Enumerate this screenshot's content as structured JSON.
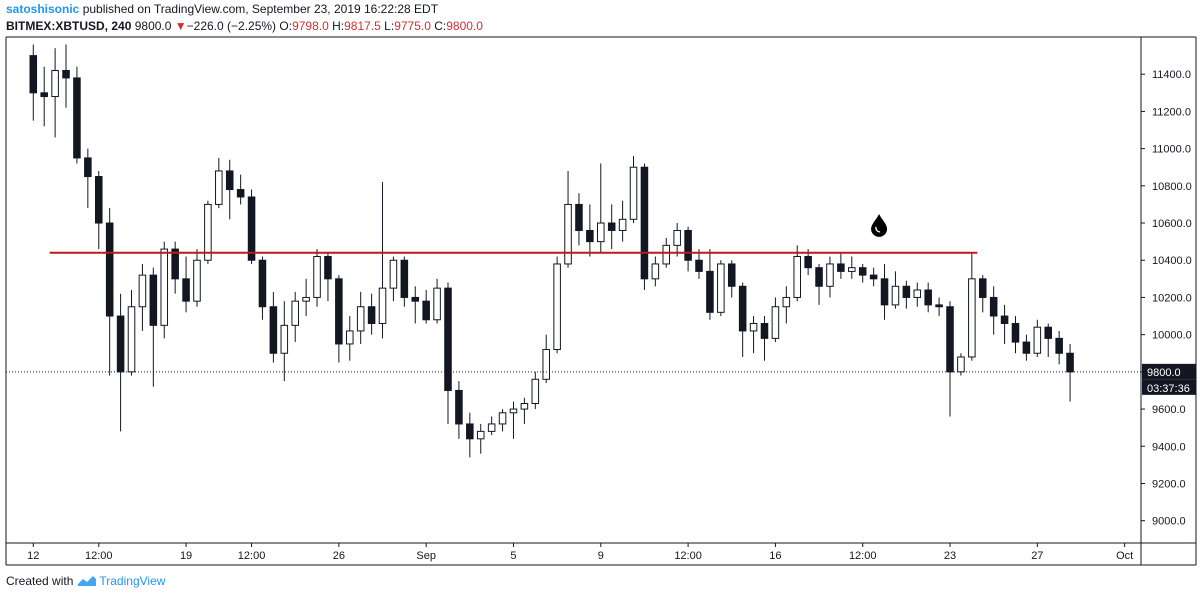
{
  "header": {
    "author": "satoshisonic",
    "published_text": "published on TradingView.com, September 23, 2019 16:22:28 EDT"
  },
  "symbol": {
    "name": "BITMEX:XBTUSD",
    "interval": "240",
    "last": "9800.0",
    "change": "−226.0 (−2.25%)",
    "open_label": "O:",
    "open": "9798.0",
    "high_label": "H:",
    "high": "9817.5",
    "low_label": "L:",
    "low": "9775.0",
    "close_label": "C:",
    "close": "9800.0"
  },
  "footer": {
    "created_with": "Created with",
    "brand": "TradingView"
  },
  "colors": {
    "candle": "#131722",
    "resistance": "#b71c1c",
    "drop_icon": "#000000",
    "price_tag_bg": "#131722"
  },
  "chart_data": {
    "type": "candlestick",
    "title": "",
    "xlabel": "",
    "ylabel": "",
    "ylim": [
      8880,
      11600
    ],
    "y_ticks": [
      "11400.0",
      "11200.0",
      "11000.0",
      "10800.0",
      "10600.0",
      "10400.0",
      "10200.0",
      "10000.0",
      "9800.0",
      "9600.0",
      "9400.0",
      "9200.0",
      "9000.0"
    ],
    "x_ticks": [
      "12",
      "12:00",
      "19",
      "12:00",
      "26",
      "Sep",
      "5",
      "9",
      "12:00",
      "16",
      "12:00",
      "23",
      "27",
      "Oct"
    ],
    "x_tick_positions": [
      0,
      6,
      14,
      20,
      28,
      36,
      44,
      52,
      60,
      68,
      76,
      84,
      92,
      100
    ],
    "x_domain": [
      -2.5,
      101.5
    ],
    "price_tag": "9800.0",
    "countdown": "03:37:36",
    "current_price": 9800,
    "resistance_level": 10440,
    "resistance_range": [
      1.5,
      86.5
    ],
    "drop_icon_at": {
      "x": 77.5,
      "y": 10590
    },
    "candles": [
      {
        "o": 11500,
        "h": 11560,
        "l": 11150,
        "c": 11300
      },
      {
        "o": 11300,
        "h": 11440,
        "l": 11120,
        "c": 11280
      },
      {
        "o": 11280,
        "h": 11540,
        "l": 11060,
        "c": 11420
      },
      {
        "o": 11420,
        "h": 11560,
        "l": 11220,
        "c": 11380
      },
      {
        "o": 11380,
        "h": 11440,
        "l": 10920,
        "c": 10950
      },
      {
        "o": 10950,
        "h": 11000,
        "l": 10680,
        "c": 10850
      },
      {
        "o": 10850,
        "h": 10880,
        "l": 10460,
        "c": 10600
      },
      {
        "o": 10600,
        "h": 10680,
        "l": 9780,
        "c": 10100
      },
      {
        "o": 10100,
        "h": 10220,
        "l": 9480,
        "c": 9800
      },
      {
        "o": 9800,
        "h": 10240,
        "l": 9780,
        "c": 10150
      },
      {
        "o": 10150,
        "h": 10380,
        "l": 10020,
        "c": 10320
      },
      {
        "o": 10320,
        "h": 10360,
        "l": 9720,
        "c": 10050
      },
      {
        "o": 10050,
        "h": 10500,
        "l": 9980,
        "c": 10460
      },
      {
        "o": 10460,
        "h": 10500,
        "l": 10220,
        "c": 10300
      },
      {
        "o": 10300,
        "h": 10420,
        "l": 10120,
        "c": 10180
      },
      {
        "o": 10180,
        "h": 10460,
        "l": 10150,
        "c": 10400
      },
      {
        "o": 10400,
        "h": 10720,
        "l": 10380,
        "c": 10700
      },
      {
        "o": 10700,
        "h": 10950,
        "l": 10680,
        "c": 10880
      },
      {
        "o": 10880,
        "h": 10940,
        "l": 10620,
        "c": 10780
      },
      {
        "o": 10780,
        "h": 10860,
        "l": 10700,
        "c": 10740
      },
      {
        "o": 10740,
        "h": 10780,
        "l": 10380,
        "c": 10400
      },
      {
        "o": 10400,
        "h": 10420,
        "l": 10080,
        "c": 10150
      },
      {
        "o": 10150,
        "h": 10230,
        "l": 9850,
        "c": 9900
      },
      {
        "o": 9900,
        "h": 10180,
        "l": 9750,
        "c": 10050
      },
      {
        "o": 10050,
        "h": 10230,
        "l": 9960,
        "c": 10180
      },
      {
        "o": 10180,
        "h": 10300,
        "l": 10100,
        "c": 10200
      },
      {
        "o": 10200,
        "h": 10460,
        "l": 10150,
        "c": 10420
      },
      {
        "o": 10420,
        "h": 10440,
        "l": 10180,
        "c": 10300
      },
      {
        "o": 10300,
        "h": 10320,
        "l": 9850,
        "c": 9950
      },
      {
        "o": 9950,
        "h": 10100,
        "l": 9860,
        "c": 10020
      },
      {
        "o": 10020,
        "h": 10230,
        "l": 9950,
        "c": 10150
      },
      {
        "o": 10150,
        "h": 10220,
        "l": 10000,
        "c": 10060
      },
      {
        "o": 10060,
        "h": 10820,
        "l": 9980,
        "c": 10250
      },
      {
        "o": 10250,
        "h": 10420,
        "l": 10180,
        "c": 10400
      },
      {
        "o": 10400,
        "h": 10420,
        "l": 10150,
        "c": 10200
      },
      {
        "o": 10200,
        "h": 10260,
        "l": 10060,
        "c": 10180
      },
      {
        "o": 10180,
        "h": 10240,
        "l": 10060,
        "c": 10080
      },
      {
        "o": 10080,
        "h": 10300,
        "l": 10060,
        "c": 10250
      },
      {
        "o": 10250,
        "h": 10280,
        "l": 9520,
        "c": 9700
      },
      {
        "o": 9700,
        "h": 9750,
        "l": 9440,
        "c": 9520
      },
      {
        "o": 9520,
        "h": 9580,
        "l": 9340,
        "c": 9440
      },
      {
        "o": 9440,
        "h": 9520,
        "l": 9360,
        "c": 9480
      },
      {
        "o": 9480,
        "h": 9560,
        "l": 9460,
        "c": 9520
      },
      {
        "o": 9520,
        "h": 9600,
        "l": 9480,
        "c": 9580
      },
      {
        "o": 9580,
        "h": 9640,
        "l": 9440,
        "c": 9600
      },
      {
        "o": 9600,
        "h": 9660,
        "l": 9520,
        "c": 9630
      },
      {
        "o": 9630,
        "h": 9800,
        "l": 9600,
        "c": 9760
      },
      {
        "o": 9760,
        "h": 10000,
        "l": 9740,
        "c": 9920
      },
      {
        "o": 9920,
        "h": 10420,
        "l": 9900,
        "c": 10380
      },
      {
        "o": 10380,
        "h": 10880,
        "l": 10360,
        "c": 10700
      },
      {
        "o": 10700,
        "h": 10760,
        "l": 10480,
        "c": 10560
      },
      {
        "o": 10560,
        "h": 10700,
        "l": 10420,
        "c": 10500
      },
      {
        "o": 10500,
        "h": 10920,
        "l": 10440,
        "c": 10600
      },
      {
        "o": 10600,
        "h": 10700,
        "l": 10460,
        "c": 10560
      },
      {
        "o": 10560,
        "h": 10720,
        "l": 10500,
        "c": 10620
      },
      {
        "o": 10620,
        "h": 10960,
        "l": 10600,
        "c": 10900
      },
      {
        "o": 10900,
        "h": 10920,
        "l": 10240,
        "c": 10300
      },
      {
        "o": 10300,
        "h": 10420,
        "l": 10260,
        "c": 10380
      },
      {
        "o": 10380,
        "h": 10520,
        "l": 10360,
        "c": 10480
      },
      {
        "o": 10480,
        "h": 10600,
        "l": 10420,
        "c": 10560
      },
      {
        "o": 10560,
        "h": 10580,
        "l": 10340,
        "c": 10400
      },
      {
        "o": 10400,
        "h": 10460,
        "l": 10300,
        "c": 10340
      },
      {
        "o": 10340,
        "h": 10460,
        "l": 10080,
        "c": 10120
      },
      {
        "o": 10120,
        "h": 10400,
        "l": 10100,
        "c": 10380
      },
      {
        "o": 10380,
        "h": 10400,
        "l": 10200,
        "c": 10260
      },
      {
        "o": 10260,
        "h": 10280,
        "l": 9880,
        "c": 10020
      },
      {
        "o": 10020,
        "h": 10100,
        "l": 9900,
        "c": 10060
      },
      {
        "o": 10060,
        "h": 10100,
        "l": 9860,
        "c": 9980
      },
      {
        "o": 9980,
        "h": 10200,
        "l": 9960,
        "c": 10150
      },
      {
        "o": 10150,
        "h": 10260,
        "l": 10060,
        "c": 10200
      },
      {
        "o": 10200,
        "h": 10480,
        "l": 10180,
        "c": 10420
      },
      {
        "o": 10420,
        "h": 10460,
        "l": 10320,
        "c": 10360
      },
      {
        "o": 10360,
        "h": 10380,
        "l": 10160,
        "c": 10260
      },
      {
        "o": 10260,
        "h": 10420,
        "l": 10200,
        "c": 10380
      },
      {
        "o": 10380,
        "h": 10440,
        "l": 10300,
        "c": 10340
      },
      {
        "o": 10340,
        "h": 10420,
        "l": 10300,
        "c": 10360
      },
      {
        "o": 10360,
        "h": 10380,
        "l": 10280,
        "c": 10320
      },
      {
        "o": 10320,
        "h": 10360,
        "l": 10260,
        "c": 10300
      },
      {
        "o": 10300,
        "h": 10380,
        "l": 10080,
        "c": 10160
      },
      {
        "o": 10160,
        "h": 10340,
        "l": 10140,
        "c": 10260
      },
      {
        "o": 10260,
        "h": 10290,
        "l": 10140,
        "c": 10200
      },
      {
        "o": 10200,
        "h": 10280,
        "l": 10150,
        "c": 10240
      },
      {
        "o": 10240,
        "h": 10280,
        "l": 10120,
        "c": 10160
      },
      {
        "o": 10160,
        "h": 10200,
        "l": 10100,
        "c": 10150
      },
      {
        "o": 10150,
        "h": 10180,
        "l": 9560,
        "c": 9800
      },
      {
        "o": 9800,
        "h": 9900,
        "l": 9780,
        "c": 9880
      },
      {
        "o": 9880,
        "h": 10440,
        "l": 9860,
        "c": 10300
      },
      {
        "o": 10300,
        "h": 10320,
        "l": 10120,
        "c": 10200
      },
      {
        "o": 10200,
        "h": 10260,
        "l": 10000,
        "c": 10100
      },
      {
        "o": 10100,
        "h": 10160,
        "l": 9950,
        "c": 10060
      },
      {
        "o": 10060,
        "h": 10100,
        "l": 9900,
        "c": 9960
      },
      {
        "o": 9960,
        "h": 10000,
        "l": 9860,
        "c": 9900
      },
      {
        "o": 9900,
        "h": 10080,
        "l": 9880,
        "c": 10040
      },
      {
        "o": 10040,
        "h": 10060,
        "l": 9880,
        "c": 9980
      },
      {
        "o": 9980,
        "h": 10020,
        "l": 9840,
        "c": 9900
      },
      {
        "o": 9900,
        "h": 9950,
        "l": 9640,
        "c": 9800
      }
    ]
  }
}
